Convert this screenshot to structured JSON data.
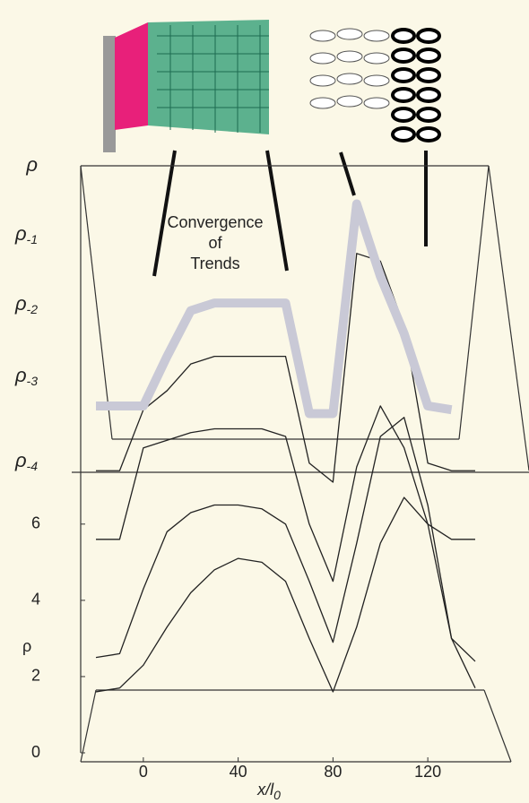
{
  "chart_data": {
    "type": "line",
    "annotation": [
      "Convergence",
      "of",
      "Trends"
    ],
    "level_labels": [
      {
        "text": "ρ",
        "sub": ""
      },
      {
        "text": "ρ",
        "sub": "-1"
      },
      {
        "text": "ρ",
        "sub": "-2"
      },
      {
        "text": "ρ",
        "sub": "-3"
      },
      {
        "text": "ρ",
        "sub": "-4"
      }
    ],
    "xlabel": {
      "text": "x/l",
      "sub": "0"
    },
    "ylabel": "ρ",
    "x": [
      -20,
      -10,
      0,
      10,
      20,
      30,
      40,
      50,
      60,
      70,
      80,
      90,
      100,
      110,
      120,
      130,
      140
    ],
    "series": [
      {
        "color": "#222222",
        "values": [
          1.6,
          1.7,
          2.3,
          3.3,
          4.2,
          4.8,
          5.1,
          5.0,
          4.5,
          3.0,
          1.6,
          3.3,
          5.5,
          6.7,
          6.0,
          3.0,
          1.7
        ]
      },
      {
        "color": "#222222",
        "values": [
          2.5,
          2.6,
          4.3,
          5.8,
          6.3,
          6.5,
          6.5,
          6.4,
          6.0,
          4.5,
          2.9,
          5.5,
          8.3,
          8.8,
          6.5,
          3.0,
          2.4
        ]
      },
      {
        "color": "#222222",
        "values": [
          5.6,
          5.6,
          8.0,
          8.2,
          8.4,
          8.5,
          8.5,
          8.5,
          8.3,
          6.0,
          4.5,
          7.5,
          9.1,
          8.0,
          6.0,
          5.6,
          5.6
        ]
      },
      {
        "color": "#222222",
        "values": [
          7.4,
          7.4,
          9.0,
          9.5,
          10.2,
          10.4,
          10.4,
          10.4,
          10.4,
          7.6,
          7.1,
          13.1,
          12.9,
          11.2,
          7.6,
          7.4,
          7.4
        ]
      },
      {
        "color": "#c9c9d6",
        "values": [
          9.1,
          9.1,
          9.1,
          10.4,
          11.6,
          11.8,
          11.8,
          11.8,
          11.8,
          8.9,
          8.9,
          14.4,
          12.5,
          11.0,
          9.1,
          9.0,
          null
        ]
      }
    ],
    "xlim": [
      -20,
      140
    ],
    "ylim": [
      0,
      15
    ],
    "xticks": [
      0,
      40,
      80,
      120
    ],
    "yticks": [
      0,
      2,
      4,
      6
    ]
  }
}
